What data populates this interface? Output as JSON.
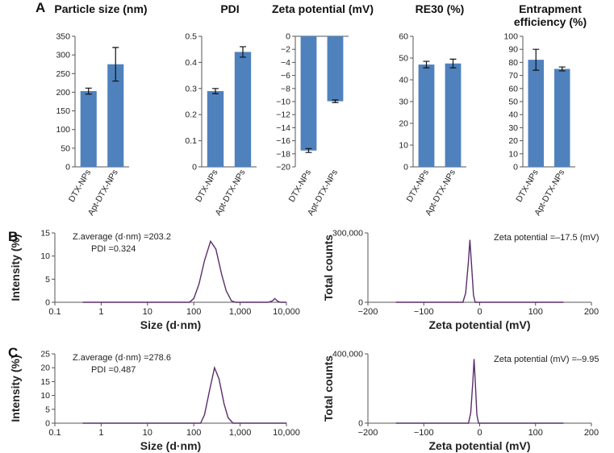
{
  "panel_labels": [
    "A",
    "B",
    "C"
  ],
  "chart_data": [
    {
      "type": "bar",
      "title": "Particle size (nm)",
      "categories": [
        "DTX-NPs",
        "Apt-DTX-NPs"
      ],
      "values": [
        203,
        275
      ],
      "errors": [
        8,
        45
      ],
      "color": "#4f81bd",
      "ylim": [
        0,
        350
      ],
      "yticks": [
        0,
        50,
        100,
        150,
        200,
        250,
        300,
        350
      ]
    },
    {
      "type": "bar",
      "title": "PDI",
      "categories": [
        "DTX-NPs",
        "Apt-DTX-NPs"
      ],
      "values": [
        0.29,
        0.44
      ],
      "errors": [
        0.01,
        0.02
      ],
      "color": "#4f81bd",
      "ylim": [
        0,
        0.5
      ],
      "yticks": [
        0,
        0.1,
        0.2,
        0.3,
        0.4,
        0.5
      ]
    },
    {
      "type": "bar",
      "title": "Zeta potential (mV)",
      "categories": [
        "DTX-NPs",
        "Apt-DTX-NPs"
      ],
      "values": [
        -17.5,
        -9.95
      ],
      "errors": [
        0.3,
        0.2
      ],
      "color": "#4f81bd",
      "ylim": [
        -20,
        0
      ],
      "yticks": [
        0,
        {
          "value": -2,
          "label": "−2"
        },
        {
          "value": -4,
          "label": "−4"
        },
        {
          "value": -6,
          "label": "−6"
        },
        {
          "value": -8,
          "label": "−8"
        },
        {
          "value": -10,
          "label": "−10"
        },
        {
          "value": -12,
          "label": "−12"
        },
        {
          "value": -14,
          "label": "−14"
        },
        {
          "value": -16,
          "label": "−16"
        },
        {
          "value": -18,
          "label": "−18"
        },
        {
          "value": -20,
          "label": "−20"
        }
      ]
    },
    {
      "type": "bar",
      "title": "RE30 (%)",
      "categories": [
        "DTX-NPs",
        "Apt-DTX-NPs"
      ],
      "values": [
        47,
        47.5
      ],
      "errors": [
        1.5,
        2
      ],
      "color": "#4f81bd",
      "ylim": [
        0,
        60
      ],
      "yticks": [
        0,
        10,
        20,
        30,
        40,
        50,
        60
      ]
    },
    {
      "type": "bar",
      "title": "Entrapment efficiency (%)",
      "categories": [
        "DTX-NPs",
        "Apt-DTX-NPs"
      ],
      "values": [
        82,
        75
      ],
      "errors": [
        8,
        1.5
      ],
      "color": "#4f81bd",
      "ylim": [
        0,
        100
      ],
      "yticks": [
        0,
        10,
        20,
        30,
        40,
        50,
        60,
        70,
        80,
        90,
        100
      ]
    },
    {
      "type": "line",
      "xlabel": "Size (d·nm)",
      "ylabel": "Intensity (%)",
      "xscale": "log",
      "color": "#5a2d6b",
      "annotations": [
        "Z.average (d·nm) =203.2",
        "PDI =0.324"
      ],
      "x": [
        0.4,
        80,
        100,
        130,
        170,
        230,
        300,
        400,
        500,
        650,
        800,
        4000,
        5000,
        5600,
        6500,
        7500,
        10000
      ],
      "values": [
        0,
        0,
        0.8,
        4,
        9,
        13.2,
        11.5,
        6,
        2.5,
        0.3,
        0,
        0,
        0.3,
        0.8,
        0.2,
        0,
        0
      ],
      "xlim": [
        0.1,
        10000
      ],
      "xticks": [
        0.1,
        1,
        10,
        100,
        {
          "value": 1000,
          "label": "1,000"
        },
        {
          "value": 10000,
          "label": "10,000"
        }
      ],
      "ylim": [
        0,
        15
      ],
      "yticks": [
        0,
        5,
        10,
        15
      ]
    },
    {
      "type": "line",
      "xlabel": "Zeta potential (mV)",
      "ylabel": "Total counts",
      "xscale": "linear",
      "color": "#5a2d6b",
      "annotations": [
        "Zeta potential =–17.5 (mV)"
      ],
      "x": [
        -150,
        -30,
        -25,
        -20,
        -17.5,
        -15,
        -11,
        -8,
        150
      ],
      "values": [
        0,
        0,
        40000,
        180000,
        270000,
        180000,
        30000,
        0,
        0
      ],
      "xlim": [
        -200,
        200
      ],
      "xticks": [
        {
          "value": -200,
          "label": "−200"
        },
        {
          "value": -100,
          "label": "−100"
        },
        0,
        100,
        200
      ],
      "ylim": [
        0,
        300000
      ],
      "yticks": [
        0,
        {
          "value": 300000,
          "label": "300,000"
        }
      ]
    },
    {
      "type": "line",
      "xlabel": "Size (d·nm)",
      "ylabel": "Intensity (%)",
      "xscale": "log",
      "color": "#5a2d6b",
      "annotations": [
        "Z.average (d·nm) =278.6",
        "PDI =0.487"
      ],
      "x": [
        0.4,
        140,
        170,
        220,
        280,
        350,
        450,
        550,
        700,
        10000
      ],
      "values": [
        0,
        0,
        3,
        12,
        20,
        16,
        7,
        2,
        0,
        0
      ],
      "xlim": [
        0.1,
        10000
      ],
      "xticks": [
        0.1,
        1,
        10,
        100,
        {
          "value": 1000,
          "label": "1,000"
        },
        {
          "value": 10000,
          "label": "10,000"
        }
      ],
      "ylim": [
        0,
        25
      ],
      "yticks": [
        0,
        5,
        10,
        15,
        20,
        25
      ]
    },
    {
      "type": "line",
      "xlabel": "Zeta potential (mV)",
      "ylabel": "Total counts",
      "xscale": "linear",
      "color": "#5a2d6b",
      "annotations": [
        "Zeta potential (mV) =–9.95"
      ],
      "x": [
        -150,
        -20,
        -16,
        -12,
        -10,
        -8,
        -5,
        -2,
        150
      ],
      "values": [
        0,
        0,
        60000,
        250000,
        370000,
        250000,
        50000,
        0,
        0
      ],
      "xlim": [
        -200,
        200
      ],
      "xticks": [
        {
          "value": -200,
          "label": "−200"
        },
        {
          "value": -100,
          "label": "−100"
        },
        0,
        100,
        200
      ],
      "ylim": [
        0,
        400000
      ],
      "yticks": [
        0,
        {
          "value": 400000,
          "label": "400,000"
        }
      ]
    }
  ]
}
